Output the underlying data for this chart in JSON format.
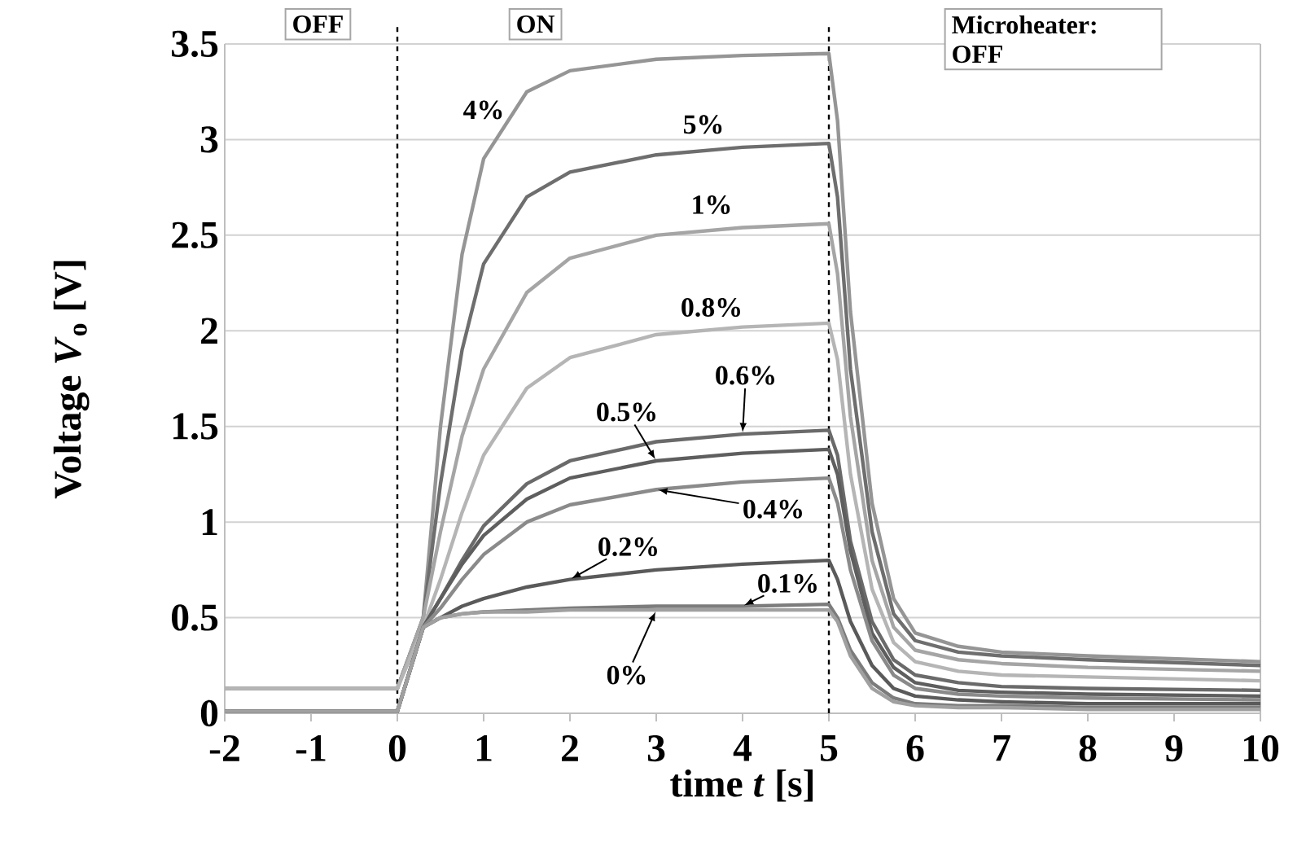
{
  "chart_data": {
    "type": "line",
    "xlabel": "time *t* [s]",
    "ylabel": "Voltage *V*$_{o}$ [V]",
    "x": [
      -2,
      0,
      0.3,
      0.5,
      0.75,
      1,
      1.5,
      2,
      3,
      4,
      5,
      5.1,
      5.25,
      5.5,
      5.75,
      6,
      6.5,
      7,
      8,
      10
    ],
    "series": [
      {
        "name": "4%",
        "color": "#959595",
        "values": [
          0.13,
          0.13,
          0.5,
          1.5,
          2.4,
          2.9,
          3.25,
          3.36,
          3.42,
          3.44,
          3.45,
          3.1,
          2.1,
          1.1,
          0.6,
          0.42,
          0.35,
          0.32,
          0.3,
          0.27
        ]
      },
      {
        "name": "5%",
        "color": "#6e6e6e",
        "values": [
          0.13,
          0.13,
          0.5,
          1.2,
          1.9,
          2.35,
          2.7,
          2.83,
          2.92,
          2.96,
          2.98,
          2.7,
          1.8,
          0.95,
          0.52,
          0.38,
          0.32,
          0.3,
          0.28,
          0.25
        ]
      },
      {
        "name": "1%",
        "color": "#a5a5a5",
        "values": [
          0.13,
          0.13,
          0.5,
          0.95,
          1.45,
          1.8,
          2.2,
          2.38,
          2.5,
          2.54,
          2.56,
          2.3,
          1.55,
          0.8,
          0.45,
          0.33,
          0.28,
          0.26,
          0.24,
          0.22
        ]
      },
      {
        "name": "0.8%",
        "color": "#b5b5b5",
        "values": [
          0.13,
          0.13,
          0.45,
          0.7,
          1.05,
          1.35,
          1.7,
          1.86,
          1.98,
          2.02,
          2.04,
          1.85,
          1.25,
          0.65,
          0.37,
          0.27,
          0.22,
          0.2,
          0.19,
          0.17
        ]
      },
      {
        "name": "0.6%",
        "color": "#6a6a6a",
        "values": [
          0.01,
          0.01,
          0.45,
          0.6,
          0.8,
          0.98,
          1.2,
          1.32,
          1.42,
          1.46,
          1.48,
          1.35,
          0.9,
          0.48,
          0.28,
          0.2,
          0.16,
          0.14,
          0.13,
          0.12
        ]
      },
      {
        "name": "0.5%",
        "color": "#5e5e5e",
        "values": [
          0.01,
          0.01,
          0.45,
          0.6,
          0.78,
          0.93,
          1.12,
          1.23,
          1.32,
          1.36,
          1.38,
          1.25,
          0.85,
          0.42,
          0.24,
          0.16,
          0.12,
          0.11,
          0.1,
          0.09
        ]
      },
      {
        "name": "0.4%",
        "color": "#8a8a8a",
        "values": [
          0.01,
          0.01,
          0.45,
          0.55,
          0.7,
          0.83,
          1.0,
          1.09,
          1.17,
          1.21,
          1.23,
          1.1,
          0.75,
          0.38,
          0.2,
          0.13,
          0.1,
          0.09,
          0.08,
          0.07
        ]
      },
      {
        "name": "0.2%",
        "color": "#5a5a5a",
        "values": [
          0.01,
          0.01,
          0.45,
          0.5,
          0.56,
          0.6,
          0.66,
          0.7,
          0.75,
          0.78,
          0.8,
          0.7,
          0.48,
          0.25,
          0.13,
          0.09,
          0.07,
          0.06,
          0.05,
          0.05
        ]
      },
      {
        "name": "0.1%",
        "color": "#7c7c7c",
        "values": [
          0.01,
          0.01,
          0.45,
          0.5,
          0.52,
          0.53,
          0.54,
          0.55,
          0.56,
          0.56,
          0.57,
          0.5,
          0.33,
          0.16,
          0.08,
          0.05,
          0.04,
          0.04,
          0.03,
          0.03
        ]
      },
      {
        "name": "0%",
        "color": "#a0a0a0",
        "values": [
          0.01,
          0.01,
          0.45,
          0.5,
          0.52,
          0.53,
          0.53,
          0.54,
          0.54,
          0.54,
          0.54,
          0.48,
          0.3,
          0.13,
          0.06,
          0.04,
          0.03,
          0.03,
          0.02,
          0.02
        ]
      }
    ],
    "xlim": [
      -2,
      10
    ],
    "xticks": [
      -2,
      -1,
      0,
      1,
      2,
      3,
      4,
      5,
      6,
      7,
      8,
      9,
      10
    ],
    "ylim": [
      0,
      3.5
    ],
    "yticks": [
      0,
      0.5,
      1,
      1.5,
      2,
      2.5,
      3,
      3.5
    ],
    "grid": "y",
    "marker": "none",
    "line_style": "solid",
    "ref_lines": [
      {
        "axis": "x",
        "value": 0,
        "color": "#000000",
        "line_style": "dashed"
      },
      {
        "axis": "x",
        "value": 5,
        "color": "#000000",
        "line_style": "dashed"
      }
    ],
    "annotations": [
      "OFF",
      "ON",
      "Microheater: OFF"
    ]
  }
}
